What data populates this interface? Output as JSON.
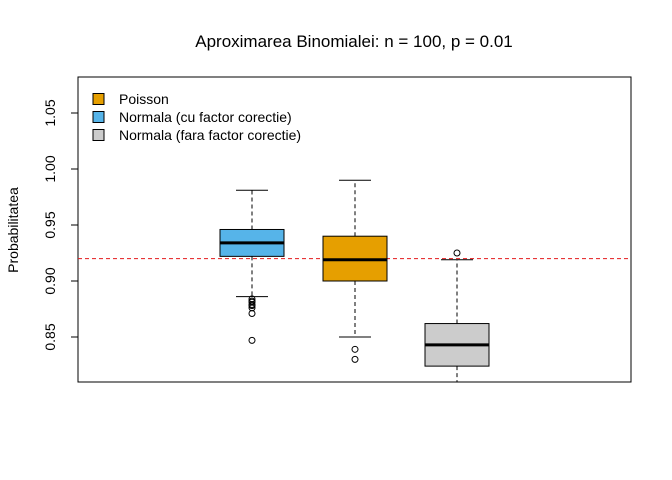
{
  "chart_data": {
    "type": "boxplot",
    "title": "Aproximarea Binomialei: n = 100, p = 0.01",
    "xlabel": "",
    "ylabel": "Probabilitatea",
    "ylim": [
      0.81,
      1.08
    ],
    "yticks": [
      0.85,
      0.9,
      0.95,
      1.0,
      1.05
    ],
    "ytick_labels": [
      "0.85",
      "0.90",
      "0.95",
      "1.00",
      "1.05"
    ],
    "grid": false,
    "legend_position": "top-left",
    "reference_line": {
      "y": 0.92,
      "color": "#e41a1c",
      "style": "dashed"
    },
    "series": [
      {
        "name": "Normala (cu factor corectie)",
        "color": "#56B4E9",
        "whisker_low": 0.886,
        "q1": 0.922,
        "median": 0.934,
        "q3": 0.946,
        "whisker_high": 0.981,
        "outliers": [
          0.884,
          0.882,
          0.881,
          0.879,
          0.878,
          0.876,
          0.871,
          0.847
        ]
      },
      {
        "name": "Poisson",
        "color": "#E69F00",
        "whisker_low": 0.85,
        "q1": 0.9,
        "median": 0.919,
        "q3": 0.94,
        "whisker_high": 0.99,
        "outliers": [
          0.839,
          0.83
        ]
      },
      {
        "name": "Normala (fara factor corectie)",
        "color": "#CCCCCC",
        "whisker_low": 0.8,
        "q1": 0.824,
        "median": 0.843,
        "q3": 0.862,
        "whisker_high": 0.919,
        "outliers": [
          0.925
        ]
      }
    ],
    "legend": [
      {
        "label": "Poisson",
        "color": "#E69F00"
      },
      {
        "label": "Normala (cu factor corectie)",
        "color": "#56B4E9"
      },
      {
        "label": "Normala (fara factor corectie)",
        "color": "#CCCCCC"
      }
    ]
  }
}
